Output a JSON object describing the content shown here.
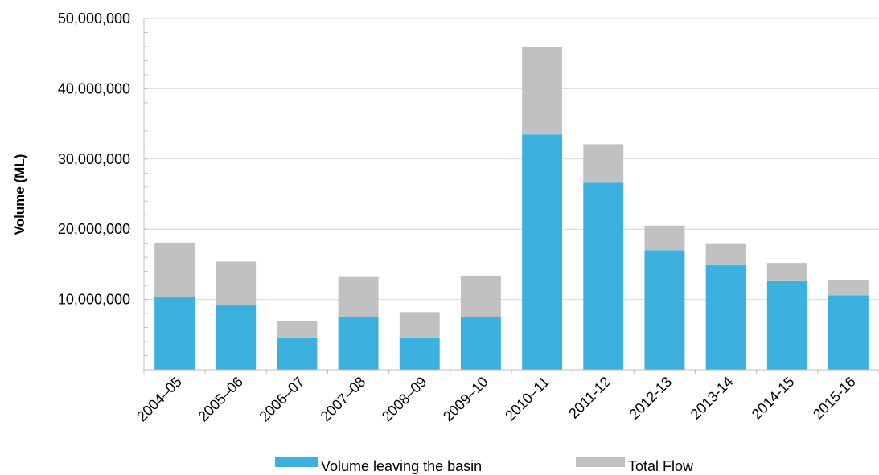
{
  "chart_data": {
    "type": "bar",
    "stacked": true,
    "categories": [
      "2004–05",
      "2005–06",
      "2006–07",
      "2007–08",
      "2008–09",
      "2009–10",
      "2010–11",
      "2011-12",
      "2012-13",
      "2013-14",
      "2014-15",
      "2015-16"
    ],
    "series": [
      {
        "name": "Volume leaving the basin",
        "color": "#3cb0df",
        "values": [
          10300000,
          9200000,
          4600000,
          7500000,
          4600000,
          7500000,
          33500000,
          26600000,
          17000000,
          14900000,
          12600000,
          10600000
        ]
      },
      {
        "name": "Total Flow",
        "color": "#c1c1c1",
        "values": [
          7800000,
          6200000,
          2300000,
          5700000,
          3600000,
          5900000,
          12400000,
          5500000,
          3500000,
          3100000,
          2600000,
          2100000
        ]
      }
    ],
    "ylabel": "Volume  (ML)",
    "xlabel": "",
    "ylim": [
      0,
      50000000
    ],
    "yticks": [
      0,
      10000000,
      20000000,
      30000000,
      40000000,
      50000000
    ],
    "ytick_labels": [
      "",
      "10,000,000",
      "20,000,000",
      "30,000,000",
      "40,000,000",
      "50,000,000"
    ],
    "grid": "horizontal",
    "legend_position": "bottom"
  }
}
